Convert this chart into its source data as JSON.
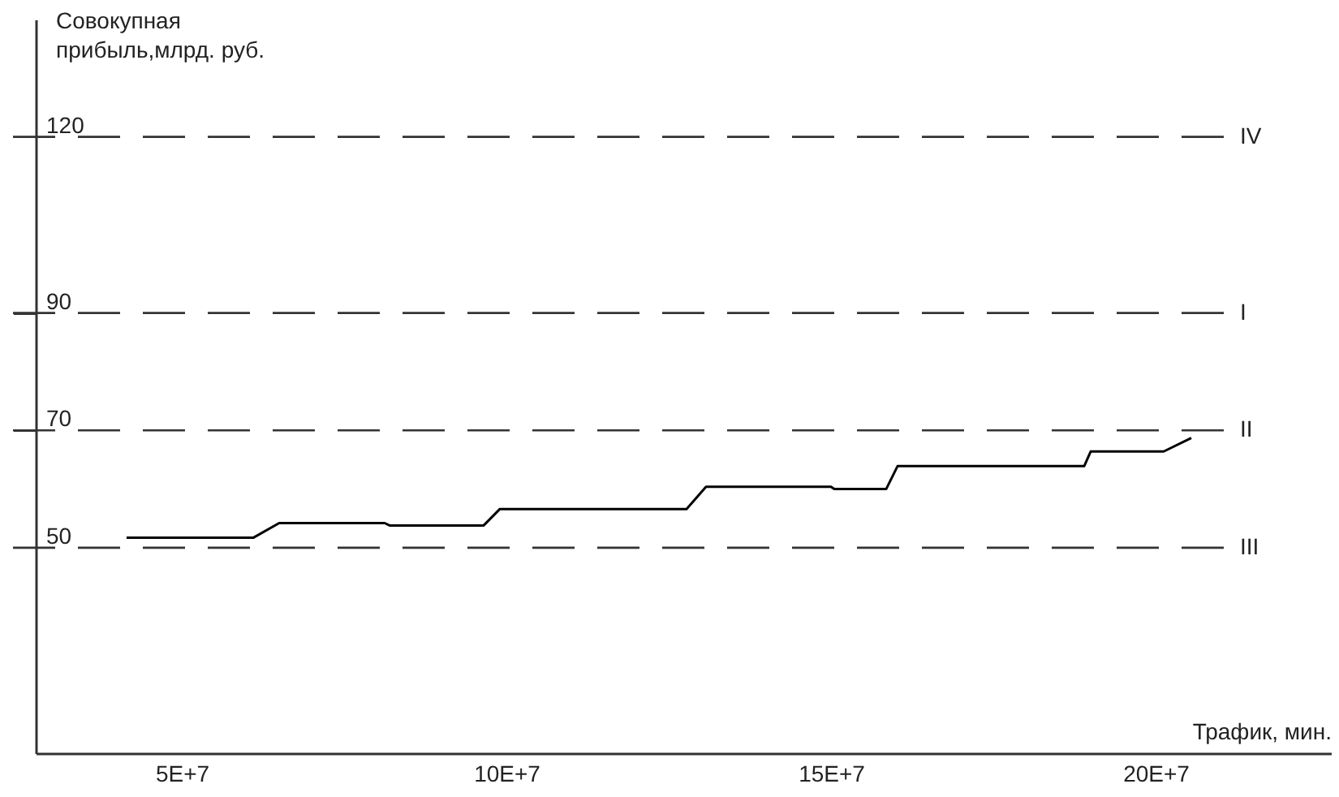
{
  "chart_data": {
    "type": "line",
    "xlabel": "Трафик, мин.",
    "ylabel": "Совокупная\nприбыль,млрд. руб.",
    "x": [
      41500000,
      61000000,
      65000000,
      81250000,
      82000000,
      96500000,
      99000000,
      127750000,
      130750000,
      150000000,
      150500000,
      158500000,
      160250000,
      189000000,
      190000000,
      201250000,
      205500000
    ],
    "series": [
      {
        "color": "#000000",
        "values": [
          51.7,
          51.7,
          54.2,
          54.2,
          53.8,
          53.8,
          56.6,
          56.6,
          60.4,
          60.4,
          60.0,
          60.0,
          63.9,
          63.9,
          66.4,
          66.4,
          68.7
        ]
      }
    ],
    "xlim": [
      27500000,
      227000000
    ],
    "xticks": [
      {
        "value": 50000000,
        "label": "5E+7"
      },
      {
        "value": 100000000,
        "label": "10E+7"
      },
      {
        "value": 150000000,
        "label": "15E+7"
      },
      {
        "value": 200000000,
        "label": "20E+7"
      }
    ],
    "ylim": [
      15,
      140
    ],
    "yticks": [
      50,
      70,
      90,
      120
    ],
    "ref_lines": [
      {
        "axis": "y",
        "value": 120,
        "label": "IV",
        "line_style": "dashed"
      },
      {
        "axis": "y",
        "value": 90,
        "label": "I",
        "line_style": "dashed"
      },
      {
        "axis": "y",
        "value": 70,
        "label": "II",
        "line_style": "dashed"
      },
      {
        "axis": "y",
        "value": 50,
        "label": "III",
        "line_style": "dashed"
      }
    ],
    "grid": false,
    "marker": "none",
    "line_style": "solid"
  }
}
